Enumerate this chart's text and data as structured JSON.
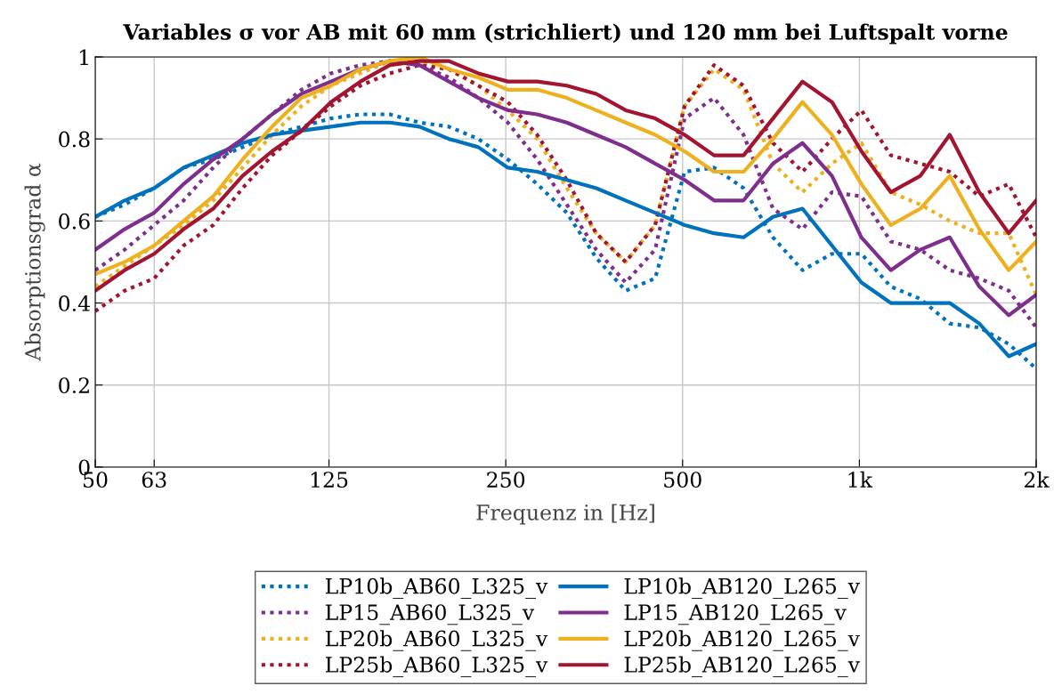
{
  "chart_data": {
    "type": "line",
    "title": "Variables σ vor AB mit 60 mm (strichliert) und 120 mm bei Luftspalt vorne",
    "xlabel": "Frequenz in [Hz]",
    "ylabel": "Absorptionsgrad α",
    "x": [
      50,
      56.1,
      63,
      70.7,
      79.4,
      89.1,
      100,
      112.2,
      126,
      141.4,
      158.7,
      178.2,
      200,
      224.5,
      252,
      282.8,
      317.5,
      356.4,
      400,
      449,
      504,
      565.7,
      635,
      712.7,
      800,
      898,
      1008,
      1131,
      1270,
      1425,
      1600,
      1796,
      2000
    ],
    "series": [
      {
        "name": "LP10b_AB60_L325_v",
        "color": "#0072bd",
        "line_style": "dotted",
        "values": [
          0.61,
          0.64,
          0.68,
          0.73,
          0.75,
          0.78,
          0.81,
          0.83,
          0.85,
          0.86,
          0.86,
          0.84,
          0.83,
          0.8,
          0.75,
          0.69,
          0.62,
          0.51,
          0.43,
          0.46,
          0.72,
          0.73,
          0.68,
          0.56,
          0.48,
          0.52,
          0.52,
          0.44,
          0.41,
          0.35,
          0.34,
          0.3,
          0.24
        ]
      },
      {
        "name": "LP15_AB60_L325_v",
        "color": "#7e2f8e",
        "line_style": "dotted",
        "values": [
          0.48,
          0.53,
          0.59,
          0.65,
          0.73,
          0.8,
          0.86,
          0.92,
          0.96,
          0.98,
          0.99,
          0.98,
          0.95,
          0.9,
          0.84,
          0.75,
          0.64,
          0.53,
          0.45,
          0.53,
          0.85,
          0.9,
          0.81,
          0.63,
          0.58,
          0.67,
          0.66,
          0.55,
          0.53,
          0.48,
          0.46,
          0.43,
          0.34
        ]
      },
      {
        "name": "LP20b_AB60_L325_v",
        "color": "#edb120",
        "line_style": "dotted",
        "values": [
          0.44,
          0.49,
          0.54,
          0.59,
          0.65,
          0.73,
          0.81,
          0.88,
          0.93,
          0.96,
          0.99,
          0.99,
          0.97,
          0.93,
          0.87,
          0.8,
          0.68,
          0.57,
          0.5,
          0.59,
          0.88,
          0.97,
          0.92,
          0.74,
          0.67,
          0.74,
          0.79,
          0.67,
          0.64,
          0.6,
          0.57,
          0.57,
          0.42
        ]
      },
      {
        "name": "LP25b_AB60_L325_v",
        "color": "#a2142f",
        "line_style": "dotted",
        "values": [
          0.38,
          0.43,
          0.46,
          0.54,
          0.59,
          0.68,
          0.76,
          0.82,
          0.88,
          0.93,
          0.96,
          0.98,
          0.97,
          0.93,
          0.89,
          0.81,
          0.7,
          0.57,
          0.5,
          0.59,
          0.88,
          0.98,
          0.93,
          0.79,
          0.72,
          0.8,
          0.87,
          0.76,
          0.74,
          0.72,
          0.66,
          0.69,
          0.56
        ]
      },
      {
        "name": "LP10b_AB120_L265_v",
        "color": "#0072bd",
        "line_style": "solid",
        "values": [
          0.61,
          0.65,
          0.68,
          0.73,
          0.76,
          0.79,
          0.81,
          0.82,
          0.83,
          0.84,
          0.84,
          0.83,
          0.8,
          0.78,
          0.73,
          0.72,
          0.7,
          0.68,
          0.65,
          0.62,
          0.59,
          0.57,
          0.56,
          0.61,
          0.63,
          0.54,
          0.45,
          0.4,
          0.4,
          0.4,
          0.35,
          0.27,
          0.3
        ]
      },
      {
        "name": "LP15_AB120_L265_v",
        "color": "#7e2f8e",
        "line_style": "solid",
        "values": [
          0.53,
          0.58,
          0.62,
          0.69,
          0.75,
          0.8,
          0.86,
          0.91,
          0.94,
          0.97,
          0.99,
          0.98,
          0.94,
          0.9,
          0.87,
          0.86,
          0.84,
          0.81,
          0.78,
          0.74,
          0.7,
          0.65,
          0.65,
          0.74,
          0.79,
          0.71,
          0.56,
          0.48,
          0.53,
          0.56,
          0.44,
          0.37,
          0.42
        ]
      },
      {
        "name": "LP20b_AB120_L265_v",
        "color": "#edb120",
        "line_style": "solid",
        "values": [
          0.47,
          0.5,
          0.54,
          0.6,
          0.66,
          0.75,
          0.83,
          0.9,
          0.93,
          0.97,
          0.99,
          1.0,
          0.97,
          0.95,
          0.92,
          0.92,
          0.9,
          0.87,
          0.84,
          0.81,
          0.77,
          0.72,
          0.72,
          0.8,
          0.89,
          0.81,
          0.69,
          0.59,
          0.63,
          0.71,
          0.58,
          0.48,
          0.55
        ]
      },
      {
        "name": "LP25b_AB120_L265_v",
        "color": "#a2142f",
        "line_style": "solid",
        "values": [
          0.43,
          0.48,
          0.52,
          0.58,
          0.63,
          0.71,
          0.77,
          0.82,
          0.89,
          0.94,
          0.98,
          0.99,
          0.99,
          0.96,
          0.94,
          0.94,
          0.93,
          0.91,
          0.87,
          0.85,
          0.81,
          0.76,
          0.76,
          0.85,
          0.94,
          0.89,
          0.77,
          0.67,
          0.71,
          0.81,
          0.67,
          0.57,
          0.65
        ]
      }
    ],
    "xlim": [
      50,
      2000
    ],
    "ylim": [
      0,
      1
    ],
    "log": "x",
    "xticks": [
      50,
      63,
      125,
      250,
      500,
      {
        "value": 1000,
        "label": "1k"
      },
      {
        "value": 2000,
        "label": "2k"
      }
    ],
    "yticks": [
      0,
      0.2,
      0.4,
      0.6,
      0.8,
      1
    ],
    "grid": true,
    "legend": "bottom"
  }
}
